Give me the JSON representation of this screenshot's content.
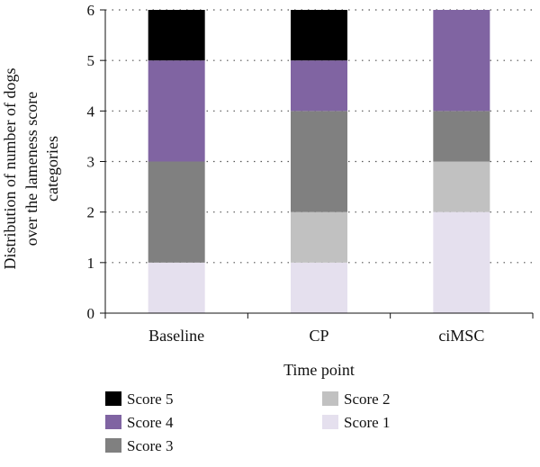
{
  "chart_data": {
    "type": "bar",
    "stacked": true,
    "categories": [
      "Baseline",
      "CP",
      "ciMSC"
    ],
    "series": [
      {
        "name": "Score 1",
        "values": [
          1,
          1,
          2
        ],
        "color": "#e5e0ee"
      },
      {
        "name": "Score 2",
        "values": [
          0,
          1,
          1
        ],
        "color": "#c1c1c1"
      },
      {
        "name": "Score 3",
        "values": [
          2,
          2,
          1
        ],
        "color": "#808080"
      },
      {
        "name": "Score 4",
        "values": [
          2,
          1,
          2
        ],
        "color": "#8064a2"
      },
      {
        "name": "Score 5",
        "values": [
          1,
          1,
          0
        ],
        "color": "#000000"
      }
    ],
    "legend_order": [
      "Score 5",
      "Score 4",
      "Score 3",
      "Score 2",
      "Score 1"
    ],
    "xlabel": "Time point",
    "ylabel_lines": [
      "Distribution of number of dogs",
      "over the lameness score",
      "categories"
    ],
    "ylim": [
      0,
      6
    ],
    "yticks": [
      "0",
      "1",
      "2",
      "3",
      "4",
      "5",
      "6"
    ],
    "grid": "horizontal-dotted",
    "legend_placement": "bottom"
  }
}
